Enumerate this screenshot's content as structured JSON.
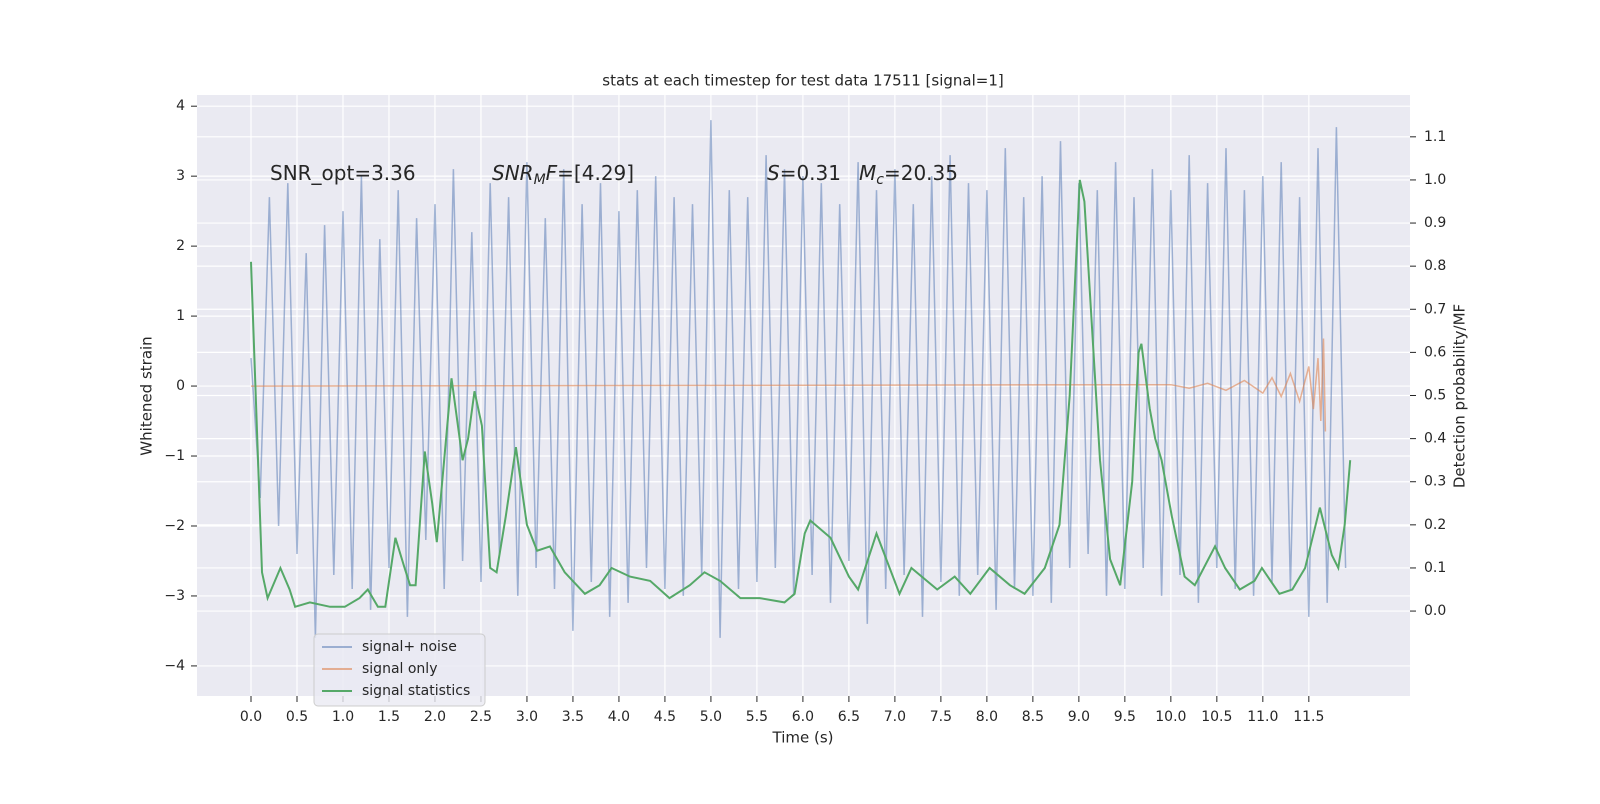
{
  "chart_data": {
    "type": "line",
    "title": "stats at each timestep for test data 17511 [signal=1]",
    "xlabel": "Time (s)",
    "ylabel": "Whitened strain",
    "y2label": "Detection probability/MF",
    "xlim": [
      -0.587,
      12.6
    ],
    "ylim": [
      -4.43,
      4.16
    ],
    "y2lim": [
      -0.197,
      1.197
    ],
    "xticks": [
      {
        "value": 0,
        "label": "0.0"
      },
      0.5,
      {
        "value": 1,
        "label": "1.0"
      },
      1.5,
      {
        "value": 2,
        "label": "2.0"
      },
      2.5,
      {
        "value": 3,
        "label": "3.0"
      },
      3.5,
      {
        "value": 4,
        "label": "4.0"
      },
      4.5,
      {
        "value": 5,
        "label": "5.0"
      },
      5.5,
      {
        "value": 6,
        "label": "6.0"
      },
      6.5,
      {
        "value": 7,
        "label": "7.0"
      },
      7.5,
      {
        "value": 8,
        "label": "8.0"
      },
      8.5,
      {
        "value": 9,
        "label": "9.0"
      },
      9.5,
      {
        "value": 10,
        "label": "10.0"
      },
      10.5,
      {
        "value": 11,
        "label": "11.0"
      },
      11.5
    ],
    "yticks": [
      {
        "value": -4,
        "label": "−4"
      },
      {
        "value": -3,
        "label": "−3"
      },
      {
        "value": -2,
        "label": "−2"
      },
      {
        "value": -1,
        "label": "−1"
      },
      0,
      1,
      2,
      3,
      4
    ],
    "y2ticks": [
      {
        "value": 0,
        "label": "0.0"
      },
      0.1,
      0.2,
      0.3,
      0.4,
      0.5,
      0.6,
      0.7,
      0.8,
      0.9,
      {
        "value": 1,
        "label": "1.0"
      },
      1.1
    ],
    "grid": true,
    "legend": "lower left",
    "annotations": [
      [
        {
          "text": "SNR_opt=3.36",
          "style": "normal"
        }
      ],
      [
        {
          "text": "SNR",
          "style": "italic"
        },
        {
          "text": "M",
          "style": "italic-sub"
        },
        {
          "text": "F",
          "style": "italic"
        },
        {
          "text": "=[4.29]",
          "style": "normal"
        }
      ],
      [
        {
          "text": "S",
          "style": "italic"
        },
        {
          "text": "=0.31",
          "style": "normal"
        }
      ],
      [
        {
          "text": "M",
          "style": "italic"
        },
        {
          "text": "c",
          "style": "italic-sub"
        },
        {
          "text": "=20.35",
          "style": "normal"
        }
      ]
    ],
    "series": [
      {
        "name": "signal+ noise",
        "color": "#4c72b0",
        "opacity": 0.5,
        "x": [
          0,
          0.1,
          0.2,
          0.3,
          0.4,
          0.5,
          0.6,
          0.7,
          0.8,
          0.9,
          1,
          1.1,
          1.2,
          1.3,
          1.4,
          1.5,
          1.6,
          1.7,
          1.8,
          1.9,
          2,
          2.1,
          2.2,
          2.3,
          2.4,
          2.5,
          2.6,
          2.7,
          2.8,
          2.9,
          3,
          3.1,
          3.2,
          3.3,
          3.4,
          3.5,
          3.6,
          3.7,
          3.8,
          3.9,
          4,
          4.1,
          4.2,
          4.3,
          4.4,
          4.5,
          4.6,
          4.7,
          4.8,
          4.9,
          5,
          5.1,
          5.2,
          5.3,
          5.4,
          5.5,
          5.6,
          5.7,
          5.8,
          5.9,
          6,
          6.1,
          6.2,
          6.3,
          6.4,
          6.5,
          6.6,
          6.7,
          6.8,
          6.9,
          7,
          7.1,
          7.2,
          7.3,
          7.4,
          7.5,
          7.6,
          7.7,
          7.8,
          7.9,
          8,
          8.1,
          8.2,
          8.3,
          8.4,
          8.5,
          8.6,
          8.7,
          8.8,
          8.9,
          9,
          9.1,
          9.2,
          9.3,
          9.4,
          9.5,
          9.6,
          9.7,
          9.8,
          9.9,
          10,
          10.1,
          10.2,
          10.3,
          10.4,
          10.5,
          10.6,
          10.7,
          10.8,
          10.9,
          11,
          11.1,
          11.2,
          11.3,
          11.4,
          11.5,
          11.6,
          11.7,
          11.8,
          11.9
        ],
        "values": [
          0.4,
          -1.6,
          2.7,
          -2.0,
          2.9,
          -2.4,
          1.9,
          -3.6,
          2.3,
          -2.7,
          2.5,
          -2.9,
          3.0,
          -3.2,
          2.1,
          -2.6,
          2.8,
          -3.3,
          2.4,
          -2.2,
          2.6,
          -2.9,
          3.1,
          -2.5,
          2.2,
          -2.8,
          2.9,
          -2.4,
          2.7,
          -3.0,
          3.2,
          -2.6,
          2.4,
          -2.9,
          3.1,
          -3.5,
          2.6,
          -2.8,
          2.9,
          -3.3,
          2.5,
          -3.1,
          2.8,
          -2.6,
          3.0,
          -2.9,
          2.7,
          -3.0,
          2.6,
          -2.7,
          3.8,
          -3.6,
          2.8,
          -2.9,
          2.7,
          -2.8,
          3.3,
          -2.6,
          3.1,
          -3.0,
          3.0,
          -2.7,
          2.9,
          -3.1,
          2.6,
          -2.5,
          3.2,
          -3.4,
          2.8,
          -2.9,
          3.1,
          -2.7,
          2.6,
          -3.3,
          3.0,
          -2.8,
          3.3,
          -3.0,
          2.9,
          -2.7,
          2.8,
          -3.2,
          3.4,
          -2.9,
          2.7,
          -3.0,
          3.0,
          -3.1,
          3.5,
          -2.6,
          2.9,
          -2.4,
          2.8,
          -3.0,
          3.2,
          -2.9,
          2.7,
          -2.6,
          3.1,
          -3.0,
          2.8,
          -2.7,
          3.3,
          -3.1,
          2.9,
          -2.6,
          3.4,
          -2.9,
          2.8,
          -3.0,
          3.0,
          -2.8,
          3.2,
          -2.9,
          2.7,
          -3.3,
          3.4,
          -3.1,
          3.7,
          -2.6
        ]
      },
      {
        "name": "signal only",
        "color": "#dd8452",
        "opacity": 0.6,
        "x": [
          0,
          10.0,
          10.2,
          10.4,
          10.6,
          10.8,
          11.0,
          11.1,
          11.2,
          11.3,
          11.4,
          11.5,
          11.55,
          11.6,
          11.63,
          11.66,
          11.68
        ],
        "values": [
          0,
          0.02,
          -0.03,
          0.04,
          -0.06,
          0.08,
          -0.1,
          0.12,
          -0.15,
          0.18,
          -0.22,
          0.28,
          -0.33,
          0.4,
          -0.5,
          0.68,
          -0.65
        ]
      },
      {
        "name": "signal statistics",
        "color": "#55a868",
        "opacity": 1,
        "axis": "y2",
        "x": [
          0,
          0.12,
          0.18,
          0.32,
          0.42,
          0.48,
          0.64,
          0.86,
          1.02,
          1.18,
          1.27,
          1.38,
          1.46,
          1.57,
          1.67,
          1.73,
          1.79,
          1.89,
          1.97,
          2.02,
          2.18,
          2.3,
          2.36,
          2.43,
          2.51,
          2.6,
          2.67,
          2.77,
          2.88,
          3.0,
          3.11,
          3.25,
          3.41,
          3.63,
          3.79,
          3.92,
          4.12,
          4.34,
          4.55,
          4.77,
          4.93,
          5.1,
          5.32,
          5.53,
          5.8,
          5.91,
          6.02,
          6.08,
          6.3,
          6.5,
          6.6,
          6.8,
          7.05,
          7.18,
          7.46,
          7.65,
          7.82,
          8.03,
          8.25,
          8.41,
          8.63,
          8.79,
          8.9,
          9.01,
          9.06,
          9.23,
          9.34,
          9.45,
          9.58,
          9.65,
          9.68,
          9.77,
          9.83,
          9.9,
          10.01,
          10.15,
          10.26,
          10.48,
          10.59,
          10.75,
          10.91,
          10.99,
          11.18,
          11.32,
          11.46,
          11.62,
          11.75,
          11.82,
          11.89,
          11.95
        ],
        "values": [
          0.81,
          0.09,
          0.03,
          0.1,
          0.05,
          0.01,
          0.02,
          0.01,
          0.01,
          0.03,
          0.05,
          0.01,
          0.01,
          0.17,
          0.1,
          0.06,
          0.06,
          0.37,
          0.25,
          0.16,
          0.54,
          0.35,
          0.4,
          0.51,
          0.43,
          0.1,
          0.09,
          0.22,
          0.38,
          0.2,
          0.14,
          0.15,
          0.09,
          0.04,
          0.06,
          0.1,
          0.08,
          0.07,
          0.03,
          0.06,
          0.09,
          0.07,
          0.03,
          0.03,
          0.02,
          0.04,
          0.18,
          0.21,
          0.17,
          0.08,
          0.05,
          0.18,
          0.04,
          0.1,
          0.05,
          0.08,
          0.04,
          0.1,
          0.06,
          0.04,
          0.1,
          0.2,
          0.5,
          1.0,
          0.95,
          0.35,
          0.12,
          0.06,
          0.3,
          0.6,
          0.62,
          0.47,
          0.4,
          0.35,
          0.22,
          0.08,
          0.06,
          0.15,
          0.1,
          0.05,
          0.07,
          0.1,
          0.04,
          0.05,
          0.1,
          0.24,
          0.13,
          0.1,
          0.2,
          0.35
        ]
      }
    ]
  }
}
